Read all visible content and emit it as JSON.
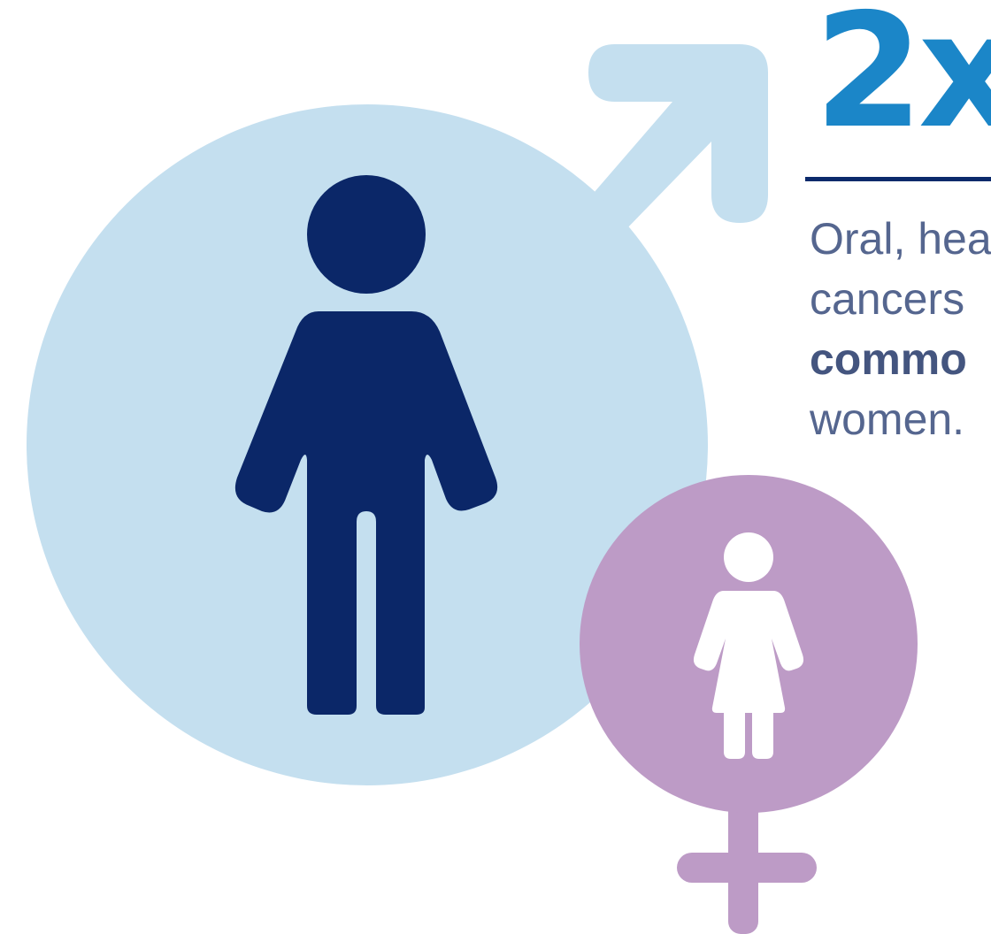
{
  "headline": {
    "value": "2x"
  },
  "description": {
    "line1": "Oral, hea",
    "line2": "cancers",
    "line3_bold": "commo",
    "line4": "women."
  },
  "icons": {
    "male": "male-symbol-icon",
    "man": "man-figure-icon",
    "female": "female-symbol-icon",
    "woman": "woman-figure-icon"
  },
  "colors": {
    "male_circle": "#c4dfef",
    "man_figure": "#0b2768",
    "female_circle": "#bd9bc6",
    "woman_figure": "#ffffff",
    "headline": "#1b86c8",
    "rule": "#0b2a6b",
    "body_text": "#55668f"
  }
}
